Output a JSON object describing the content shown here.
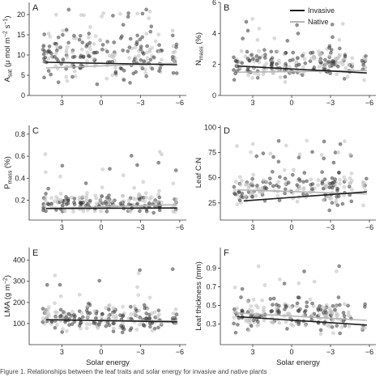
{
  "chart_data": [
    {
      "panel": "A",
      "type": "scatter",
      "ylabel_parts": [
        "A",
        "sat",
        " (μ mol m",
        "−2",
        " s",
        "−1",
        ")"
      ],
      "xlabel": "",
      "x_ticks": [
        3,
        0,
        -3,
        -6
      ],
      "x_tick_labels": [
        "3",
        "0",
        "−3",
        "−6"
      ],
      "y_ticks": [
        0,
        5,
        10,
        15,
        20
      ],
      "y_tick_labels": [
        "0",
        "5",
        "10",
        "15",
        "20"
      ],
      "xlim": [
        5.5,
        -6.5
      ],
      "ylim": [
        0,
        23
      ],
      "point_range": [
        1,
        19
      ],
      "fit_lines": {
        "Invasive": {
          "x": [
            4.2,
            -5.8
          ],
          "y": [
            8.2,
            7.6
          ]
        },
        "Native": {
          "x": [
            4.2,
            -5.8
          ],
          "y": [
            6.8,
            8.0
          ]
        }
      }
    },
    {
      "panel": "B",
      "type": "scatter",
      "ylabel_parts": [
        "N",
        "mass",
        " (%)"
      ],
      "xlabel": "",
      "x_ticks": [
        3,
        0,
        -3,
        -6
      ],
      "x_tick_labels": [
        "3",
        "0",
        "−3",
        "−6"
      ],
      "y_ticks": [
        0,
        2,
        4,
        6
      ],
      "y_tick_labels": [
        "0",
        "2",
        "4",
        "6"
      ],
      "xlim": [
        5.5,
        -6.5
      ],
      "ylim": [
        0,
        6
      ],
      "point_range": [
        0.6,
        3.4
      ],
      "fit_lines": {
        "Invasive": {
          "x": [
            4.2,
            -5.8
          ],
          "y": [
            1.9,
            1.45
          ]
        },
        "Native": {
          "x": [
            4.2,
            -5.8
          ],
          "y": [
            1.5,
            1.6
          ]
        }
      }
    },
    {
      "panel": "C",
      "type": "scatter",
      "ylabel_parts": [
        "P",
        "mass",
        " (%)"
      ],
      "xlabel": "",
      "x_ticks": [
        3,
        0,
        -3,
        -6
      ],
      "x_tick_labels": [
        "3",
        "0",
        "−3",
        "−6"
      ],
      "y_ticks": [
        0.2,
        0.4,
        0.6,
        0.8
      ],
      "y_tick_labels": [
        "0.2",
        "0.4",
        "0.6",
        "0.8"
      ],
      "xlim": [
        5.5,
        -6.5
      ],
      "ylim": [
        0.02,
        0.88
      ],
      "point_range": [
        0.05,
        0.3
      ],
      "fit_lines": {
        "Invasive": {
          "x": [
            4.2,
            -5.8
          ],
          "y": [
            0.125,
            0.13
          ]
        },
        "Native": {
          "x": [
            4.2,
            -5.8
          ],
          "y": [
            0.125,
            0.16
          ]
        }
      }
    },
    {
      "panel": "D",
      "type": "scatter",
      "ylabel_parts": [
        "Leaf C:N"
      ],
      "xlabel": "",
      "x_ticks": [
        3,
        0,
        -3,
        -6
      ],
      "x_tick_labels": [
        "3",
        "0",
        "−3",
        "−6"
      ],
      "y_ticks": [
        25,
        50,
        75,
        100
      ],
      "y_tick_labels": [
        "25",
        "50",
        "75",
        "100"
      ],
      "xlim": [
        5.5,
        -6.5
      ],
      "ylim": [
        8,
        102
      ],
      "point_range": [
        15,
        65
      ],
      "fit_lines": {
        "Invasive": {
          "x": [
            3.7,
            -5.8
          ],
          "y": [
            27,
            36
          ]
        },
        "Native": {
          "x": [
            4.2,
            -5.8
          ],
          "y": [
            38,
            34
          ]
        }
      }
    },
    {
      "panel": "E",
      "type": "scatter",
      "ylabel_parts": [
        "LMA (g m",
        "−2",
        ")"
      ],
      "xlabel": "Solar energy",
      "x_ticks": [
        3,
        0,
        -3,
        -6
      ],
      "x_tick_labels": [
        "3",
        "0",
        "−3",
        "−6"
      ],
      "y_ticks": [
        100,
        200,
        300,
        400
      ],
      "y_tick_labels": [
        "100",
        "200",
        "300",
        "400"
      ],
      "xlim": [
        5.5,
        -6.5
      ],
      "ylim": [
        0,
        460
      ],
      "point_range": [
        40,
        220
      ],
      "fit_lines": {
        "Invasive": {
          "x": [
            4.2,
            -5.8
          ],
          "y": [
            118,
            108
          ]
        },
        "Native": {
          "x": [
            4.2,
            -5.8
          ],
          "y": [
            118,
            112
          ]
        }
      }
    },
    {
      "panel": "F",
      "type": "scatter",
      "ylabel_parts": [
        "Leaf thickness (mm)"
      ],
      "xlabel": "Solar energy",
      "x_ticks": [
        3,
        0,
        -3,
        -6
      ],
      "x_tick_labels": [
        "3",
        "0",
        "−3",
        "−6"
      ],
      "y_ticks": [
        0.3,
        0.5,
        0.7,
        0.9
      ],
      "y_tick_labels": [
        "0.3",
        "0.5",
        "0.7",
        "0.9"
      ],
      "xlim": [
        5.5,
        -6.5
      ],
      "ylim": [
        0.08,
        1.12
      ],
      "point_range": [
        0.15,
        0.65
      ],
      "fit_lines": {
        "Invasive": {
          "x": [
            4.2,
            -5.8
          ],
          "y": [
            0.38,
            0.29
          ]
        },
        "Native": {
          "x": [
            4.2,
            -5.8
          ],
          "y": [
            0.42,
            0.34
          ]
        }
      }
    }
  ],
  "legend": {
    "placement": "top-right",
    "items": [
      {
        "label": "Invasive",
        "color": "#1c1c1c"
      },
      {
        "label": "Native",
        "color": "#b5b5b5"
      }
    ]
  },
  "colors": {
    "invasive_points": "#3a3a3a",
    "native_points": "#c4c4c4",
    "invasive_line": "#1c1c1c",
    "native_line": "#b5b5b5"
  },
  "caption": "Figure 1. Relationships between the leaf traits and solar energy for invasive and native plants"
}
